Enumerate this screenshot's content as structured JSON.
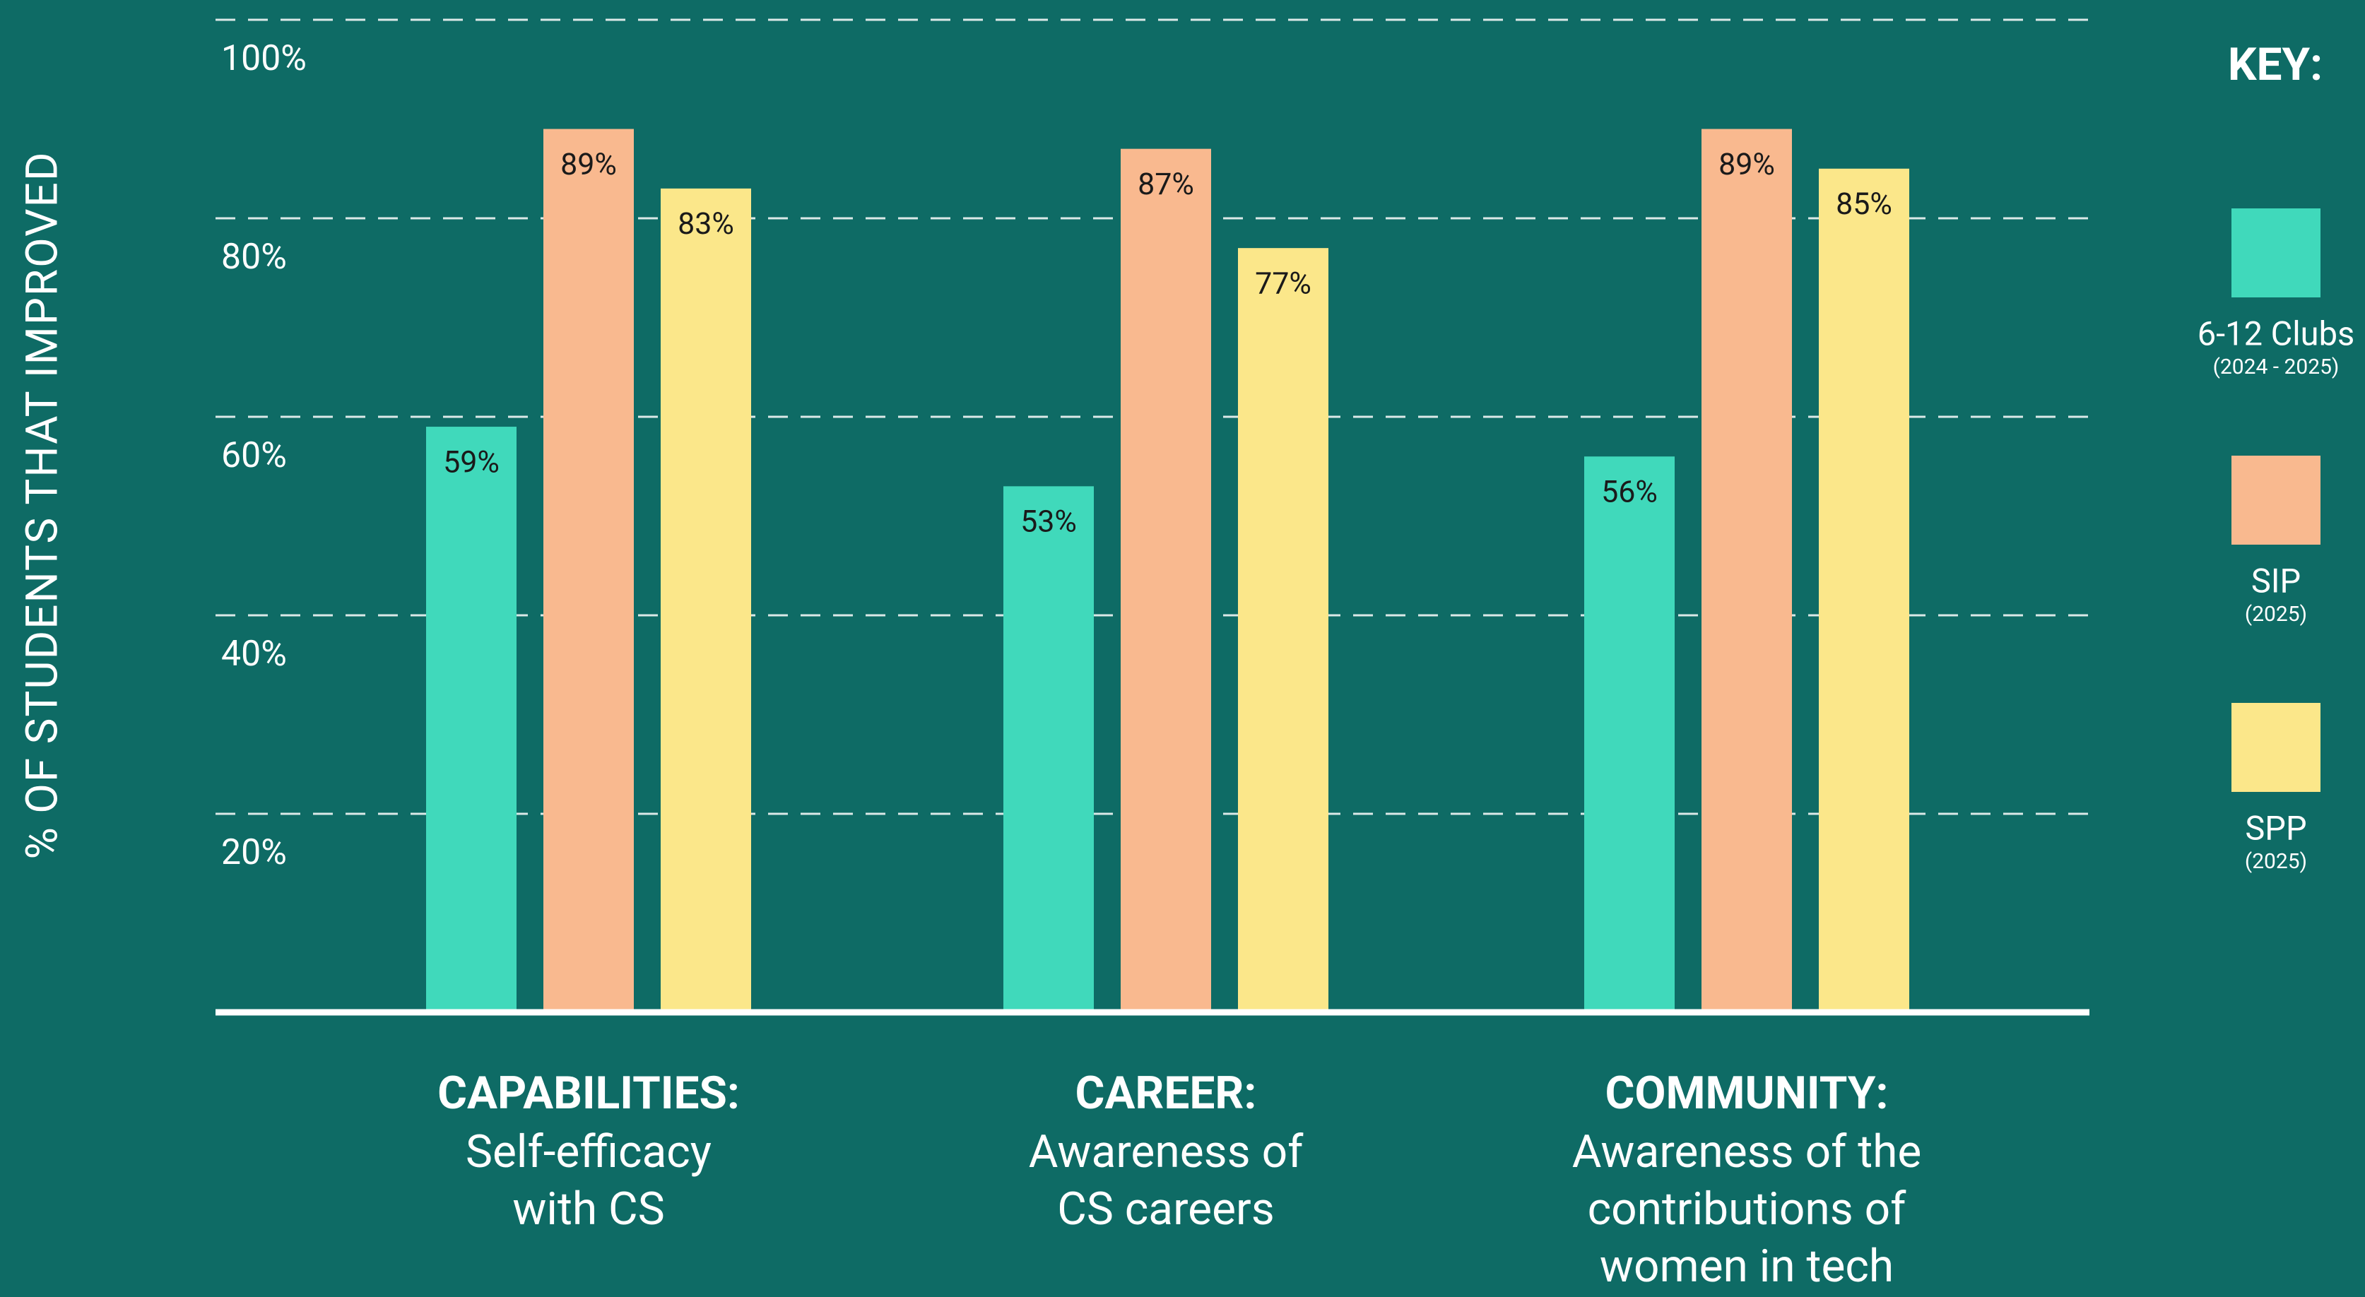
{
  "chart_data": {
    "type": "bar",
    "y_axis_label": "% OF STUDENTS THAT IMPROVED",
    "legend_title": "KEY:",
    "categories": [
      "CAPABILITIES:",
      "CAREER:",
      "COMMUNITY:"
    ],
    "category_descriptions": [
      [
        "Self-efficacy",
        "with CS"
      ],
      [
        "Awareness of",
        "CS careers"
      ],
      [
        "Awareness of the",
        "contributions of",
        "women in tech"
      ]
    ],
    "series": [
      {
        "name": "6-12 Clubs",
        "period": "(2024 - 2025)",
        "color": "#40d9bb",
        "values": [
          59,
          53,
          56
        ],
        "value_labels": [
          "59%",
          "53%",
          "56%"
        ]
      },
      {
        "name": "SIP",
        "period": "(2025)",
        "color": "#f9b98f",
        "values": [
          89,
          87,
          89
        ],
        "value_labels": [
          "89%",
          "87%",
          "89%"
        ]
      },
      {
        "name": "SPP",
        "period": "(2025)",
        "color": "#fbe78a",
        "values": [
          83,
          77,
          85
        ],
        "value_labels": [
          "83%",
          "77%",
          "85%"
        ]
      }
    ],
    "ylim": [
      0,
      100
    ],
    "yticks": [
      {
        "value": 20,
        "label": "20%"
      },
      {
        "value": 40,
        "label": "40%"
      },
      {
        "value": 60,
        "label": "60%"
      },
      {
        "value": 80,
        "label": "80%"
      },
      {
        "value": 100,
        "label": "100%"
      }
    ],
    "grid": true
  }
}
